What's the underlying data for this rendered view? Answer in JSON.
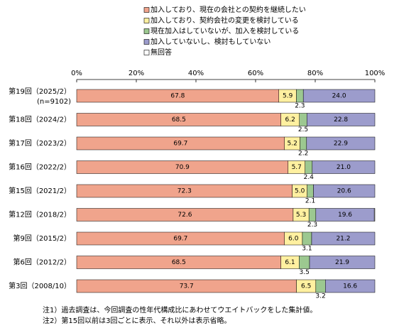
{
  "chart_data": {
    "type": "stacked-barh",
    "categories": [
      "第19回（2025/2）",
      "第18回（2024/2）",
      "第17回（2023/2）",
      "第16回（2022/2）",
      "第15回（2021/2）",
      "第12回（2018/2）",
      "第9回（2015/2）",
      "第6回（2012/2）",
      "第3回（2008/10）"
    ],
    "sample_note": "(n=9102)",
    "series": [
      {
        "name": "加入しており、現在の会社との契約を継続したい",
        "color": "#f0a48c",
        "values": [
          67.8,
          68.5,
          69.7,
          70.9,
          72.3,
          72.6,
          69.7,
          68.5,
          73.7
        ],
        "value_labels": [
          "67.8",
          "68.5",
          "69.7",
          "70.9",
          "72.3",
          "72.6",
          "69.7",
          "68.5",
          "73.7"
        ]
      },
      {
        "name": "加入しており、契約会社の変更を検討している",
        "color": "#fff0a0",
        "values": [
          5.9,
          6.2,
          5.2,
          5.7,
          5.0,
          5.3,
          6.0,
          6.1,
          6.5
        ],
        "value_labels": [
          "5.9",
          "6.2",
          "5.2",
          "5.7",
          "5.0",
          "5.3",
          "6.0",
          "6.1",
          "6.5"
        ]
      },
      {
        "name": "現在加入はしていないが、加入を検討している",
        "color": "#9cc890",
        "values": [
          2.3,
          2.5,
          2.2,
          2.4,
          2.1,
          2.3,
          3.1,
          3.5,
          3.2
        ],
        "value_labels": [
          "2.3",
          "2.5",
          "2.2",
          "2.4",
          "2.1",
          "2.3",
          "3.1",
          "3.5",
          "3.2"
        ],
        "label_below": true
      },
      {
        "name": "加入していないし、検討もしていない",
        "color": "#9c9ccc",
        "values": [
          24.0,
          22.8,
          22.9,
          21.0,
          20.6,
          19.6,
          21.2,
          21.9,
          16.6
        ],
        "value_labels": [
          "24.0",
          "22.8",
          "22.9",
          "21.0",
          "20.6",
          "19.6",
          "21.2",
          "21.9",
          "16.6"
        ]
      },
      {
        "name": "無回答",
        "color": "#ffffff",
        "values": [
          0,
          0,
          0,
          0,
          0,
          0.2,
          0,
          0,
          0
        ]
      }
    ],
    "xlim": [
      0,
      100
    ],
    "xticks": [
      {
        "value": 0,
        "label": "0%"
      },
      {
        "value": 20,
        "label": "20%"
      },
      {
        "value": 40,
        "label": "40%"
      },
      {
        "value": 60,
        "label": "60%"
      },
      {
        "value": 80,
        "label": "80%"
      },
      {
        "value": 100,
        "label": "100%"
      }
    ],
    "grid": false,
    "notes": [
      "注1）過去調査は、今回調査の性年代構成比にあわせてウエイトバックをした集計値。",
      "注2）第15回以前は3回ごとに表示、それ以外は表示省略。"
    ]
  }
}
